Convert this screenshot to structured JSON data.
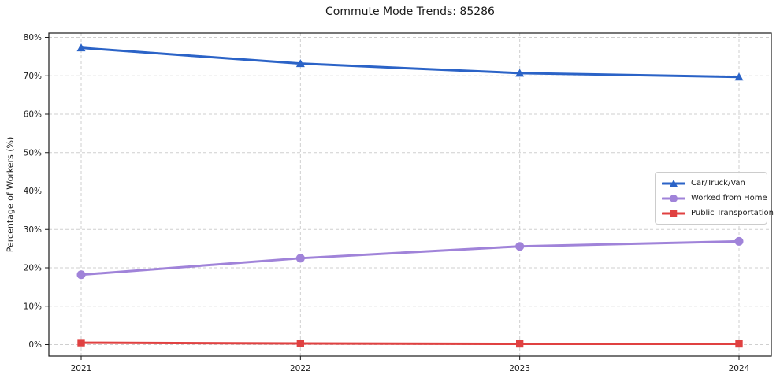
{
  "figure": {
    "background": "#ffffff",
    "grid_color": "#cfcfcf",
    "spine_color": "#1a1a1a"
  },
  "chart_data": {
    "type": "line",
    "title": "Commute Mode Trends: 85286",
    "xlabel": "",
    "ylabel": "Percentage of Workers (%)",
    "categories": [
      "2021",
      "2022",
      "2023",
      "2024"
    ],
    "series": [
      {
        "name": "Car/Truck/Van",
        "color": "#2b63c7",
        "marker": "triangle",
        "values": [
          77.3,
          73.2,
          70.7,
          69.7
        ]
      },
      {
        "name": "Worked from Home",
        "color": "#a083d9",
        "marker": "circle",
        "values": [
          18.2,
          22.5,
          25.6,
          26.9
        ]
      },
      {
        "name": "Public Transportation",
        "color": "#e04141",
        "marker": "square",
        "values": [
          0.5,
          0.3,
          0.2,
          0.2
        ]
      }
    ],
    "ylim": [
      0,
      80
    ],
    "yticks": [
      0,
      10,
      20,
      30,
      40,
      50,
      60,
      70,
      80
    ],
    "ytick_suffix": "%",
    "grid": true,
    "grid_style": "dashed",
    "legend_position": "center right"
  }
}
